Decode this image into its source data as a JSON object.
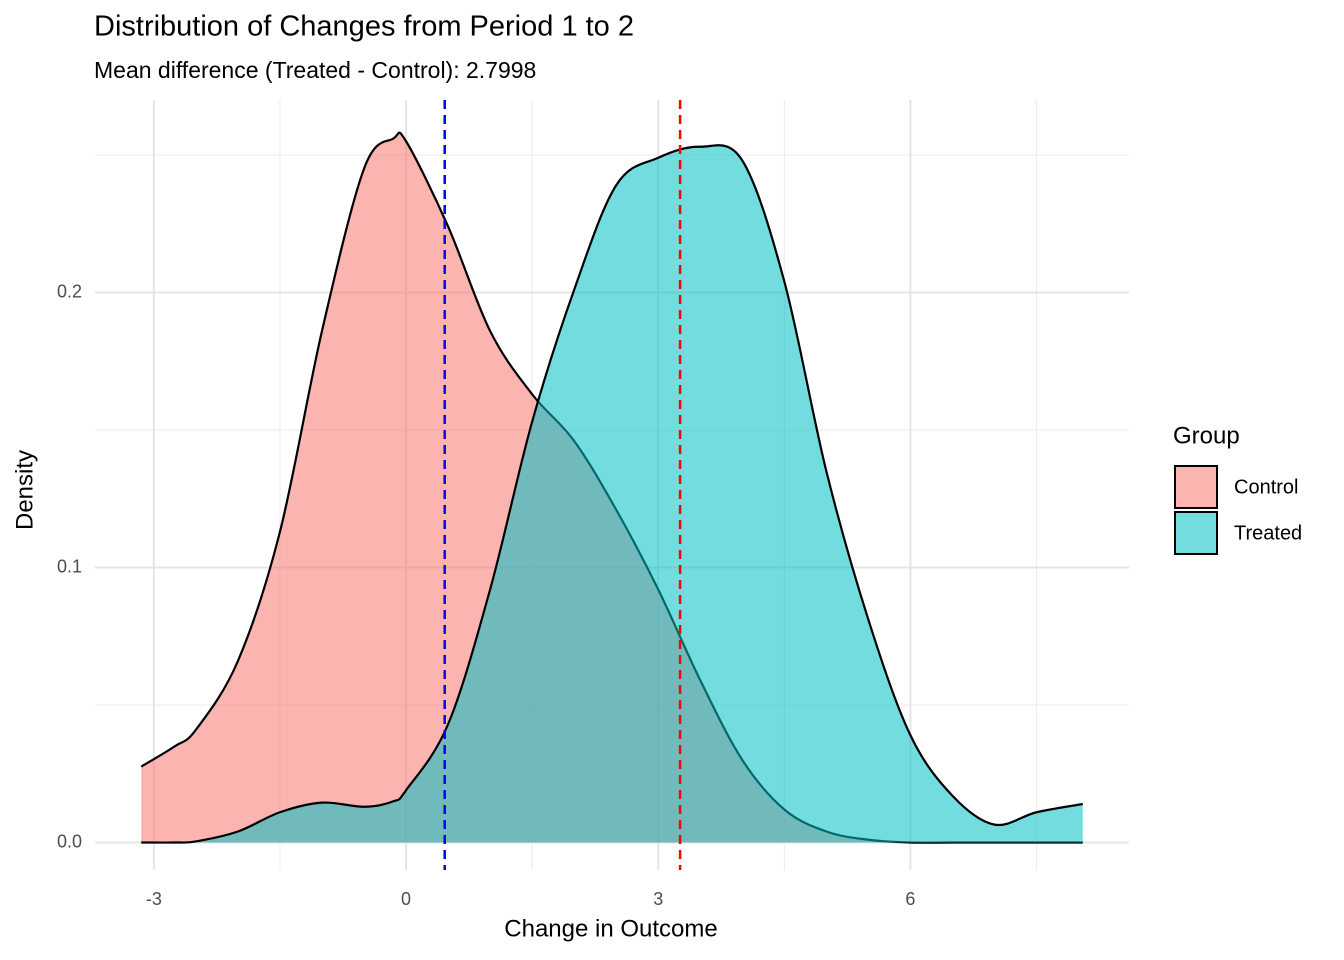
{
  "chart_data": {
    "type": "density",
    "title": "Distribution of Changes from Period 1 to 2",
    "subtitle": "Mean difference (Treated - Control): 2.7998",
    "x_label": "Change in Outcome",
    "y_label": "Density",
    "legend_title": "Group",
    "legend_position": "right",
    "x": [
      -3.15,
      -2.75,
      -2.5,
      -2,
      -1.5,
      -1,
      -0.5,
      -0.15,
      0,
      0.5,
      1,
      1.5,
      2,
      2.5,
      3,
      3.5,
      4,
      4.5,
      5,
      5.5,
      6,
      6.5,
      7,
      7.5,
      8.05
    ],
    "series": [
      {
        "name": "Control",
        "color": "#F8766D",
        "values": [
          0.0276,
          0.035,
          0.041,
          0.066,
          0.113,
          0.186,
          0.245,
          0.256,
          0.255,
          0.224,
          0.186,
          0.163,
          0.146,
          0.121,
          0.092,
          0.059,
          0.03,
          0.012,
          0.004,
          0.001,
          0,
          0,
          0,
          0,
          0
        ]
      },
      {
        "name": "Treated",
        "color": "#00BFC4",
        "values": [
          0,
          0,
          0.0004,
          0.004,
          0.011,
          0.0145,
          0.013,
          0.015,
          0.019,
          0.043,
          0.092,
          0.153,
          0.201,
          0.239,
          0.249,
          0.253,
          0.248,
          0.204,
          0.135,
          0.081,
          0.039,
          0.017,
          0.0065,
          0.011,
          0.014
        ]
      }
    ],
    "vlines": [
      {
        "x": 0.46,
        "color": "#0000ff"
      },
      {
        "x": 3.26,
        "color": "#ff0000"
      }
    ],
    "xlim": [
      -3.7,
      8.6
    ],
    "ylim": [
      -0.01,
      0.27
    ],
    "xticks": [
      -3,
      0,
      3,
      6
    ],
    "yticks": [
      {
        "value": 0,
        "label": "0.0"
      },
      0.1,
      0.2
    ],
    "xminorticks": [
      -1.5,
      1.5,
      4.5,
      7.5
    ],
    "yminorticks": [
      0.05,
      0.15,
      0.25
    ],
    "grid": true
  }
}
